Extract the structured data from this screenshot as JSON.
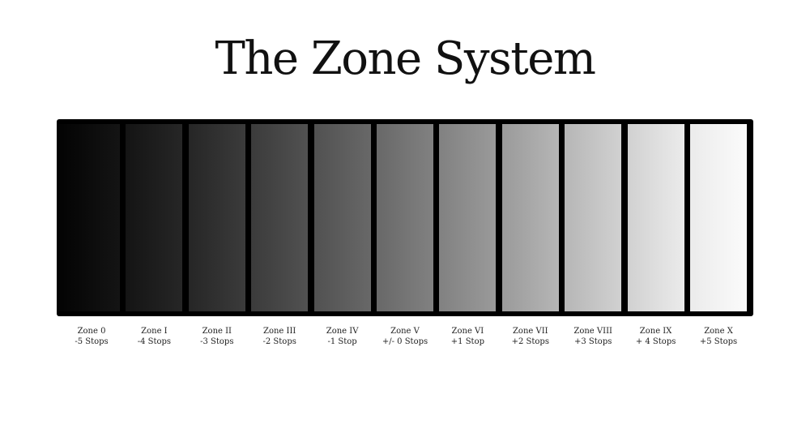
{
  "title": "The Zone System",
  "zones": [
    {
      "name": "Zone 0",
      "stops": "-5 Stops",
      "tone_from": "#030303",
      "tone_to": "#141414"
    },
    {
      "name": "Zone I",
      "stops": "-4 Stops",
      "tone_from": "#141414",
      "tone_to": "#262626"
    },
    {
      "name": "Zone II",
      "stops": "-3 Stops",
      "tone_from": "#262626",
      "tone_to": "#3b3b3b"
    },
    {
      "name": "Zone III",
      "stops": "-2 Stops",
      "tone_from": "#3b3b3b",
      "tone_to": "#515151"
    },
    {
      "name": "Zone IV",
      "stops": "-1 Stop",
      "tone_from": "#515151",
      "tone_to": "#686868"
    },
    {
      "name": "Zone V",
      "stops": "+/- 0 Stops",
      "tone_from": "#686868",
      "tone_to": "#818181"
    },
    {
      "name": "Zone VI",
      "stops": "+1 Stop",
      "tone_from": "#818181",
      "tone_to": "#9a9a9a"
    },
    {
      "name": "Zone VII",
      "stops": "+2 Stops",
      "tone_from": "#9a9a9a",
      "tone_to": "#b6b6b6"
    },
    {
      "name": "Zone VIII",
      "stops": "+3 Stops",
      "tone_from": "#b6b6b6",
      "tone_to": "#d1d1d1"
    },
    {
      "name": "Zone IX",
      "stops": "+ 4 Stops",
      "tone_from": "#d1d1d1",
      "tone_to": "#ebebeb"
    },
    {
      "name": "Zone X",
      "stops": "+5 Stops",
      "tone_from": "#ebebeb",
      "tone_to": "#fbfbfb"
    }
  ]
}
